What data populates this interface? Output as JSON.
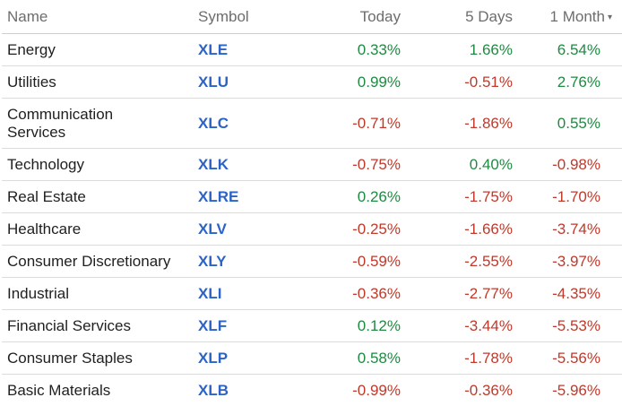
{
  "headers": {
    "name": "Name",
    "symbol": "Symbol",
    "today": "Today",
    "five_days": "5 Days",
    "one_month": "1 Month",
    "sort_icon": "▾"
  },
  "rows": [
    {
      "name": "Energy",
      "symbol": "XLE",
      "today": "0.33%",
      "five_days": "1.66%",
      "one_month": "6.54%"
    },
    {
      "name": "Utilities",
      "symbol": "XLU",
      "today": "0.99%",
      "five_days": "-0.51%",
      "one_month": "2.76%"
    },
    {
      "name": "Communication Services",
      "symbol": "XLC",
      "today": "-0.71%",
      "five_days": "-1.86%",
      "one_month": "0.55%"
    },
    {
      "name": "Technology",
      "symbol": "XLK",
      "today": "-0.75%",
      "five_days": "0.40%",
      "one_month": "-0.98%"
    },
    {
      "name": "Real Estate",
      "symbol": "XLRE",
      "today": "0.26%",
      "five_days": "-1.75%",
      "one_month": "-1.70%"
    },
    {
      "name": "Healthcare",
      "symbol": "XLV",
      "today": "-0.25%",
      "five_days": "-1.66%",
      "one_month": "-3.74%"
    },
    {
      "name": "Consumer Discretionary",
      "symbol": "XLY",
      "today": "-0.59%",
      "five_days": "-2.55%",
      "one_month": "-3.97%"
    },
    {
      "name": "Industrial",
      "symbol": "XLI",
      "today": "-0.36%",
      "five_days": "-2.77%",
      "one_month": "-4.35%"
    },
    {
      "name": "Financial Services",
      "symbol": "XLF",
      "today": "0.12%",
      "five_days": "-3.44%",
      "one_month": "-5.53%"
    },
    {
      "name": "Consumer Staples",
      "symbol": "XLP",
      "today": "0.58%",
      "five_days": "-1.78%",
      "one_month": "-5.56%"
    },
    {
      "name": "Basic Materials",
      "symbol": "XLB",
      "today": "-0.99%",
      "five_days": "-0.36%",
      "one_month": "-5.96%"
    }
  ],
  "colors": {
    "positive": "#1f8a42",
    "negative": "#c0392b",
    "symbol_link": "#2b63c6",
    "header_text": "#6d6d6d"
  }
}
